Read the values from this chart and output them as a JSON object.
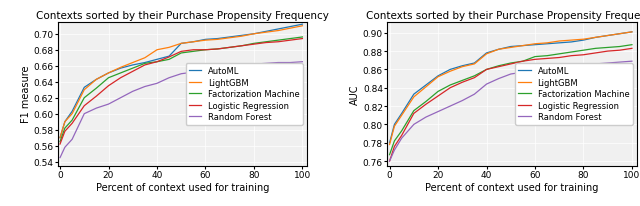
{
  "title": "Contexts sorted by their Purchase Propensity Frequency",
  "xlabel": "Percent of context used for training",
  "ylabel_left": "F1 measure",
  "ylabel_right": "AUC",
  "x": [
    0,
    2,
    5,
    10,
    15,
    20,
    25,
    30,
    35,
    40,
    45,
    50,
    55,
    60,
    65,
    70,
    75,
    80,
    85,
    90,
    95,
    100
  ],
  "left": {
    "AutoML": [
      0.57,
      0.59,
      0.603,
      0.633,
      0.643,
      0.651,
      0.657,
      0.661,
      0.664,
      0.668,
      0.672,
      0.688,
      0.69,
      0.693,
      0.694,
      0.696,
      0.698,
      0.7,
      0.703,
      0.706,
      0.709,
      0.712
    ],
    "LightGBM": [
      0.57,
      0.59,
      0.6,
      0.63,
      0.643,
      0.651,
      0.658,
      0.664,
      0.67,
      0.68,
      0.683,
      0.688,
      0.69,
      0.692,
      0.693,
      0.695,
      0.697,
      0.7,
      0.702,
      0.704,
      0.707,
      0.71
    ],
    "Factorization Machine": [
      0.565,
      0.582,
      0.592,
      0.62,
      0.632,
      0.645,
      0.651,
      0.657,
      0.663,
      0.665,
      0.668,
      0.676,
      0.678,
      0.68,
      0.681,
      0.683,
      0.685,
      0.688,
      0.69,
      0.692,
      0.694,
      0.696
    ],
    "Logistic Regression": [
      0.562,
      0.578,
      0.588,
      0.61,
      0.622,
      0.635,
      0.645,
      0.653,
      0.661,
      0.665,
      0.671,
      0.678,
      0.68,
      0.68,
      0.681,
      0.683,
      0.685,
      0.687,
      0.689,
      0.69,
      0.692,
      0.694
    ],
    "Random Forest": [
      0.545,
      0.558,
      0.568,
      0.6,
      0.607,
      0.612,
      0.62,
      0.628,
      0.634,
      0.638,
      0.645,
      0.65,
      0.652,
      0.655,
      0.657,
      0.66,
      0.661,
      0.662,
      0.663,
      0.664,
      0.664,
      0.665
    ]
  },
  "right": {
    "AutoML": [
      0.78,
      0.8,
      0.812,
      0.833,
      0.843,
      0.853,
      0.86,
      0.864,
      0.867,
      0.878,
      0.882,
      0.885,
      0.886,
      0.887,
      0.888,
      0.889,
      0.89,
      0.892,
      0.895,
      0.897,
      0.899,
      0.901
    ],
    "LightGBM": [
      0.778,
      0.798,
      0.81,
      0.83,
      0.841,
      0.852,
      0.858,
      0.863,
      0.866,
      0.877,
      0.882,
      0.884,
      0.886,
      0.888,
      0.889,
      0.891,
      0.892,
      0.893,
      0.895,
      0.897,
      0.899,
      0.901
    ],
    "Factorization Machine": [
      0.767,
      0.782,
      0.793,
      0.815,
      0.825,
      0.836,
      0.843,
      0.848,
      0.853,
      0.86,
      0.864,
      0.867,
      0.869,
      0.874,
      0.875,
      0.877,
      0.879,
      0.881,
      0.883,
      0.884,
      0.885,
      0.887
    ],
    "Logistic Regression": [
      0.76,
      0.776,
      0.788,
      0.812,
      0.822,
      0.831,
      0.84,
      0.846,
      0.851,
      0.86,
      0.863,
      0.866,
      0.869,
      0.871,
      0.872,
      0.873,
      0.875,
      0.876,
      0.878,
      0.88,
      0.881,
      0.883
    ],
    "Random Forest": [
      0.76,
      0.772,
      0.785,
      0.8,
      0.808,
      0.814,
      0.82,
      0.826,
      0.833,
      0.844,
      0.85,
      0.855,
      0.857,
      0.858,
      0.859,
      0.861,
      0.863,
      0.865,
      0.866,
      0.867,
      0.868,
      0.869
    ]
  },
  "colors": {
    "AutoML": "#1f77b4",
    "LightGBM": "#ff7f0e",
    "Factorization Machine": "#2ca02c",
    "Logistic Regression": "#d62728",
    "Random Forest": "#9467bd"
  },
  "ylim_left": [
    0.535,
    0.715
  ],
  "ylim_right": [
    0.755,
    0.912
  ],
  "yticks_left": [
    0.54,
    0.56,
    0.58,
    0.6,
    0.62,
    0.64,
    0.66,
    0.68,
    0.7
  ],
  "yticks_right": [
    0.76,
    0.78,
    0.8,
    0.82,
    0.84,
    0.86,
    0.88,
    0.9
  ],
  "xticks": [
    0,
    20,
    40,
    60,
    80,
    100
  ],
  "legend_loc": "center right",
  "legend_fontsize": 6,
  "title_fontsize": 7.5,
  "label_fontsize": 7,
  "tick_fontsize": 6.5,
  "bg_color": "#f0f0f0"
}
